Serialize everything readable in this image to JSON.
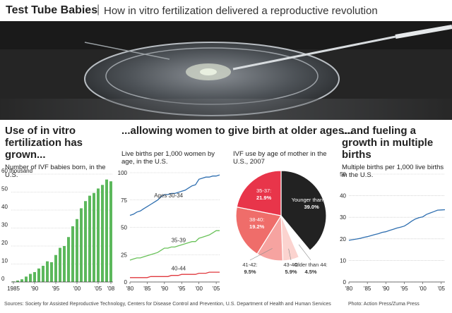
{
  "header": {
    "title": "Test Tube Babies",
    "separator": "|",
    "subtitle": "How in vitro fertilization delivered a reproductive revolution"
  },
  "panels": {
    "ivf": {
      "heading": "Use of in vitro fertilization has grown...",
      "subheading": "Number of IVF babies born, in the U.S."
    },
    "older": {
      "heading": "...allowing women to give birth at older ages...",
      "subheading": "Live births per 1,000 women by age, in the U.S."
    },
    "pie": {
      "subheading": "IVF use by age of mother in the U.S., 2007"
    },
    "multiple": {
      "heading": "...and fueling a growth in multiple births",
      "subheading": "Multiple births per 1,000 live births in the U.S."
    }
  },
  "footer": {
    "sources": "Sources: Society for Assisted Reproductive Technology, Centers for Disease Control and Prevention, U.S. Department of Health and Human Services",
    "photo_credit": "Photo: Action Press/Zuma Press"
  },
  "colors": {
    "green": "#5cb85c",
    "blue": "#2f6fb0",
    "lightgreen": "#6ac25a",
    "red": "#e0393e",
    "darkred": "#e8354a",
    "coral": "#ef6d6a",
    "pink": "#f6a3a0",
    "lightpink": "#fbd3cf",
    "black": "#222222",
    "white": "#ffffff"
  },
  "chart_data": [
    {
      "type": "bar",
      "title": "Number of IVF babies born, in the U.S.",
      "years": [
        1985,
        1986,
        1987,
        1988,
        1989,
        1990,
        1991,
        1992,
        1993,
        1994,
        1995,
        1996,
        1997,
        1998,
        1999,
        2000,
        2001,
        2002,
        2003,
        2004,
        2005,
        2006,
        2007,
        2008
      ],
      "values": [
        0.3,
        0.8,
        1.5,
        3,
        4.5,
        5.5,
        7.5,
        9,
        11.5,
        11,
        15,
        19,
        20,
        25,
        31,
        35,
        41,
        45,
        48,
        49.5,
        52,
        54,
        57,
        56
      ],
      "ylim": [
        0,
        60
      ],
      "yticks": [
        0,
        10,
        20,
        30,
        40,
        50,
        60
      ],
      "ytick_labels": [
        "0",
        "10",
        "20",
        "30",
        "40",
        "50",
        "60 thousand"
      ],
      "xtick_labels": [
        "1985",
        "'90",
        "'95",
        "'00",
        "'05",
        "'08"
      ]
    },
    {
      "type": "line",
      "title": "Live births per 1,000 women by age, in the U.S.",
      "x": [
        1980,
        1981,
        1982,
        1983,
        1984,
        1985,
        1986,
        1987,
        1988,
        1989,
        1990,
        1991,
        1992,
        1993,
        1994,
        1995,
        1996,
        1997,
        1998,
        1999,
        2000,
        2001,
        2002,
        2003,
        2004,
        2005,
        2006
      ],
      "xlim": [
        1980,
        2006
      ],
      "ylim": [
        0,
        100
      ],
      "yticks": [
        0,
        25,
        50,
        75,
        100
      ],
      "xtick_labels": [
        "'80",
        "'85",
        "'90",
        "'95",
        "'00",
        "'05"
      ],
      "series": [
        {
          "name": "Ages 30-34",
          "values": [
            61,
            62,
            64,
            65,
            67,
            69,
            71,
            73,
            75,
            78,
            80,
            80,
            81,
            81,
            82,
            83,
            84,
            86,
            88,
            89,
            94,
            95,
            96,
            96,
            97,
            97,
            98
          ]
        },
        {
          "name": "35-39",
          "values": [
            20,
            21,
            22,
            22,
            23,
            24,
            25,
            26,
            27,
            29,
            31,
            31,
            32,
            32,
            33,
            34,
            35,
            36,
            37,
            37,
            40,
            41,
            42,
            43,
            45,
            47,
            47
          ]
        },
        {
          "name": "40-44",
          "values": [
            4,
            4,
            4,
            4,
            4,
            4,
            5,
            5,
            5,
            5,
            5,
            5,
            6,
            6,
            6,
            7,
            7,
            7,
            7,
            7,
            8,
            8,
            8,
            9,
            9,
            9,
            9
          ]
        }
      ]
    },
    {
      "type": "pie",
      "title": "IVF use by age of mother in the U.S., 2007",
      "slices": [
        {
          "name": "Younger than 35:",
          "value": 39.0,
          "label": "39.0%"
        },
        {
          "name": "Older than 44:",
          "value": 4.5,
          "label": "4.5%"
        },
        {
          "name": "43-44:",
          "value": 5.9,
          "label": "5.9%"
        },
        {
          "name": "41-42:",
          "value": 9.5,
          "label": "9.5%"
        },
        {
          "name": "38-40:",
          "value": 19.2,
          "label": "19.2%"
        },
        {
          "name": "35-37:",
          "value": 21.9,
          "label": "21.9%"
        }
      ]
    },
    {
      "type": "line",
      "title": "Multiple births per 1,000 live births in the U.S.",
      "x": [
        1980,
        1981,
        1982,
        1983,
        1984,
        1985,
        1986,
        1987,
        1988,
        1989,
        1990,
        1991,
        1992,
        1993,
        1994,
        1995,
        1996,
        1997,
        1998,
        1999,
        2000,
        2001,
        2002,
        2003,
        2004,
        2005,
        2006
      ],
      "xlim": [
        1980,
        2006
      ],
      "ylim": [
        0,
        50
      ],
      "yticks": [
        0,
        10,
        20,
        30,
        40,
        50
      ],
      "xtick_labels": [
        "'80",
        "'85",
        "'90",
        "'95",
        "'00",
        "'05"
      ],
      "series": [
        {
          "name": "Multiple births",
          "values": [
            19.3,
            19.6,
            19.9,
            20.2,
            20.7,
            21.0,
            21.5,
            22.0,
            22.4,
            23.0,
            23.3,
            23.9,
            24.4,
            25.0,
            25.4,
            25.9,
            27.0,
            28.2,
            29.2,
            29.8,
            30.2,
            31.3,
            32.0,
            32.6,
            33.3,
            33.4,
            33.5
          ]
        }
      ]
    }
  ]
}
